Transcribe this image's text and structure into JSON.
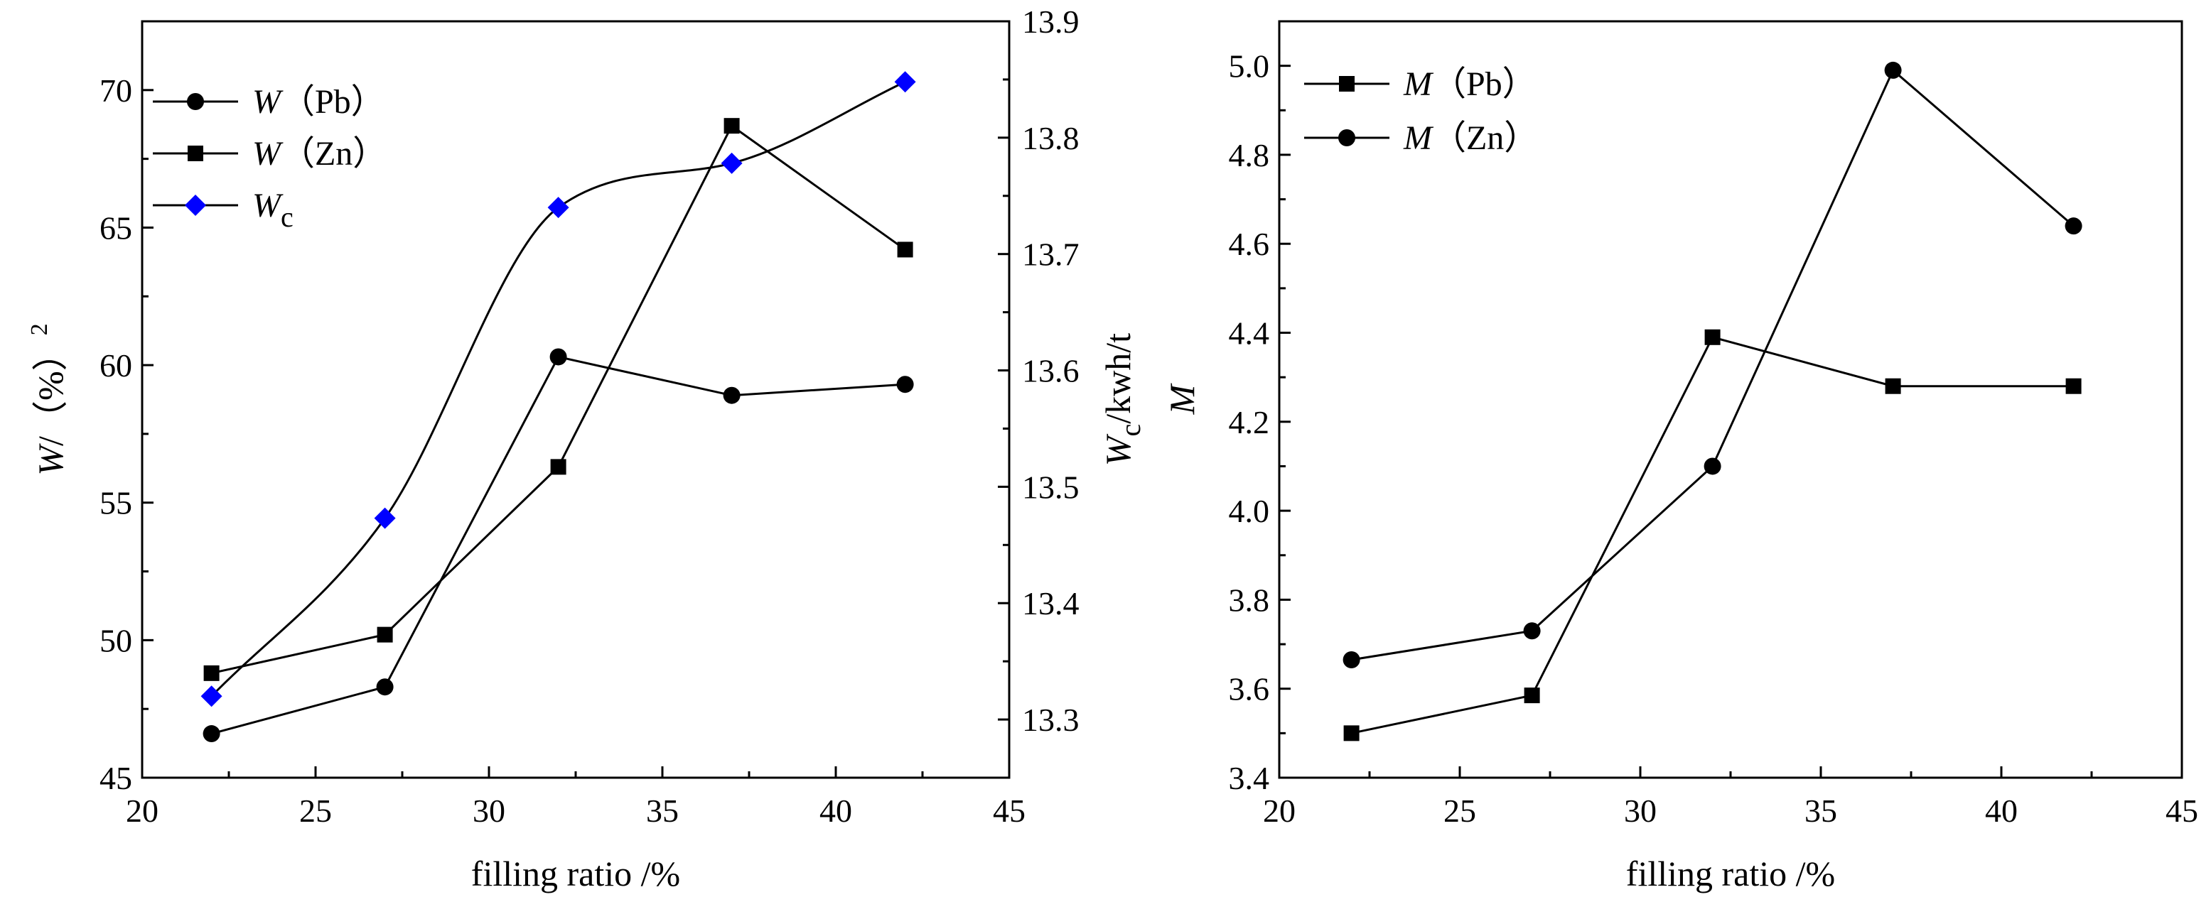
{
  "chart_data": [
    {
      "type": "line",
      "panel": "left",
      "xlabel": "filling ratio /%",
      "ylabel": {
        "var": "W",
        "rest": "/（%）",
        "sup": "2"
      },
      "y2label": {
        "var": "W",
        "sub": "c",
        "rest": "/kwh/t"
      },
      "xlim": [
        20,
        45
      ],
      "ylim": [
        45,
        72.5
      ],
      "y2lim": [
        13.25,
        13.9
      ],
      "xticks": [
        "20",
        "25",
        "30",
        "35",
        "40",
        "45"
      ],
      "yticks": [
        "45",
        "50",
        "55",
        "60",
        "65",
        "70"
      ],
      "y2ticks": [
        "13.3",
        "13.4",
        "13.5",
        "13.6",
        "13.7",
        "13.8",
        "13.9"
      ],
      "x": [
        22,
        27,
        32,
        37,
        42
      ],
      "series": [
        {
          "name": "W（Pb）",
          "label_var": "W",
          "label_rest": "（Pb）",
          "marker": "circle",
          "color": "#000000",
          "axis": "left",
          "smooth": false,
          "values": [
            46.6,
            48.3,
            60.3,
            58.9,
            59.3
          ]
        },
        {
          "name": "W（Zn）",
          "label_var": "W",
          "label_rest": "（Zn）",
          "marker": "square",
          "color": "#000000",
          "axis": "left",
          "smooth": false,
          "values": [
            48.8,
            50.2,
            56.3,
            68.7,
            64.2
          ]
        },
        {
          "name": "Wc",
          "label_var": "W",
          "label_sub": "c",
          "marker": "diamond",
          "color": "#0000ff",
          "line_color": "#000000",
          "axis": "right",
          "smooth": true,
          "values": [
            13.32,
            13.473,
            13.74,
            13.778,
            13.848
          ]
        }
      ]
    },
    {
      "type": "line",
      "panel": "right",
      "xlabel": "filling ratio /%",
      "ylabel": {
        "var": "M",
        "rest": ""
      },
      "xlim": [
        20,
        45
      ],
      "ylim": [
        3.4,
        5.1
      ],
      "xticks": [
        "20",
        "25",
        "30",
        "35",
        "40",
        "45"
      ],
      "yticks": [
        "3.4",
        "3.6",
        "3.8",
        "4.0",
        "4.2",
        "4.4",
        "4.6",
        "4.8",
        "5.0"
      ],
      "x": [
        22,
        27,
        32,
        37,
        42
      ],
      "series": [
        {
          "name": "M（Pb）",
          "label_var": "M",
          "label_rest": "（Pb）",
          "marker": "square",
          "color": "#000000",
          "axis": "left",
          "smooth": false,
          "values": [
            3.5,
            3.585,
            4.39,
            4.28,
            4.28
          ]
        },
        {
          "name": "M（Zn）",
          "label_var": "M",
          "label_rest": "（Zn）",
          "marker": "circle",
          "color": "#000000",
          "axis": "left",
          "smooth": false,
          "values": [
            3.665,
            3.73,
            4.1,
            4.99,
            4.64
          ]
        }
      ]
    }
  ]
}
